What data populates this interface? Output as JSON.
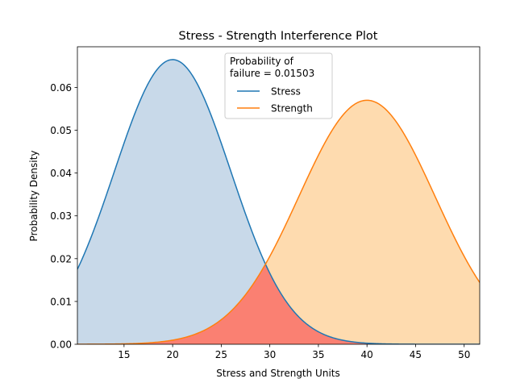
{
  "chart_data": {
    "type": "area",
    "title": "Stress - Strength Interference Plot",
    "xlabel": "Stress and Strength Units",
    "ylabel": "Probability Density",
    "xlim": [
      10.2,
      51.6
    ],
    "ylim": [
      0,
      0.0695
    ],
    "x_ticks": [
      15,
      20,
      25,
      30,
      35,
      40,
      45,
      50
    ],
    "x_tick_labels": [
      "15",
      "20",
      "25",
      "30",
      "35",
      "40",
      "45",
      "50"
    ],
    "y_ticks": [
      0,
      0.01,
      0.02,
      0.03,
      0.04,
      0.05,
      0.06
    ],
    "y_tick_labels": [
      "0.00",
      "0.01",
      "0.02",
      "0.03",
      "0.04",
      "0.05",
      "0.06"
    ],
    "grid": false,
    "legend": {
      "placement": "top-center",
      "title": "Probability of\nfailure = 0.01503"
    },
    "series": [
      {
        "name": "Stress",
        "color": "#1f77b4",
        "fill_color": "#c8d9e9",
        "mean": 20,
        "sd": 6,
        "peak": 0.0665
      },
      {
        "name": "Strength",
        "color": "#ff7f0e",
        "fill_color": "#fedbaf",
        "mean": 40,
        "sd": 7,
        "peak": 0.057
      }
    ],
    "overlap": {
      "color": "#fa8072",
      "probability_of_failure": 0.01503
    }
  }
}
